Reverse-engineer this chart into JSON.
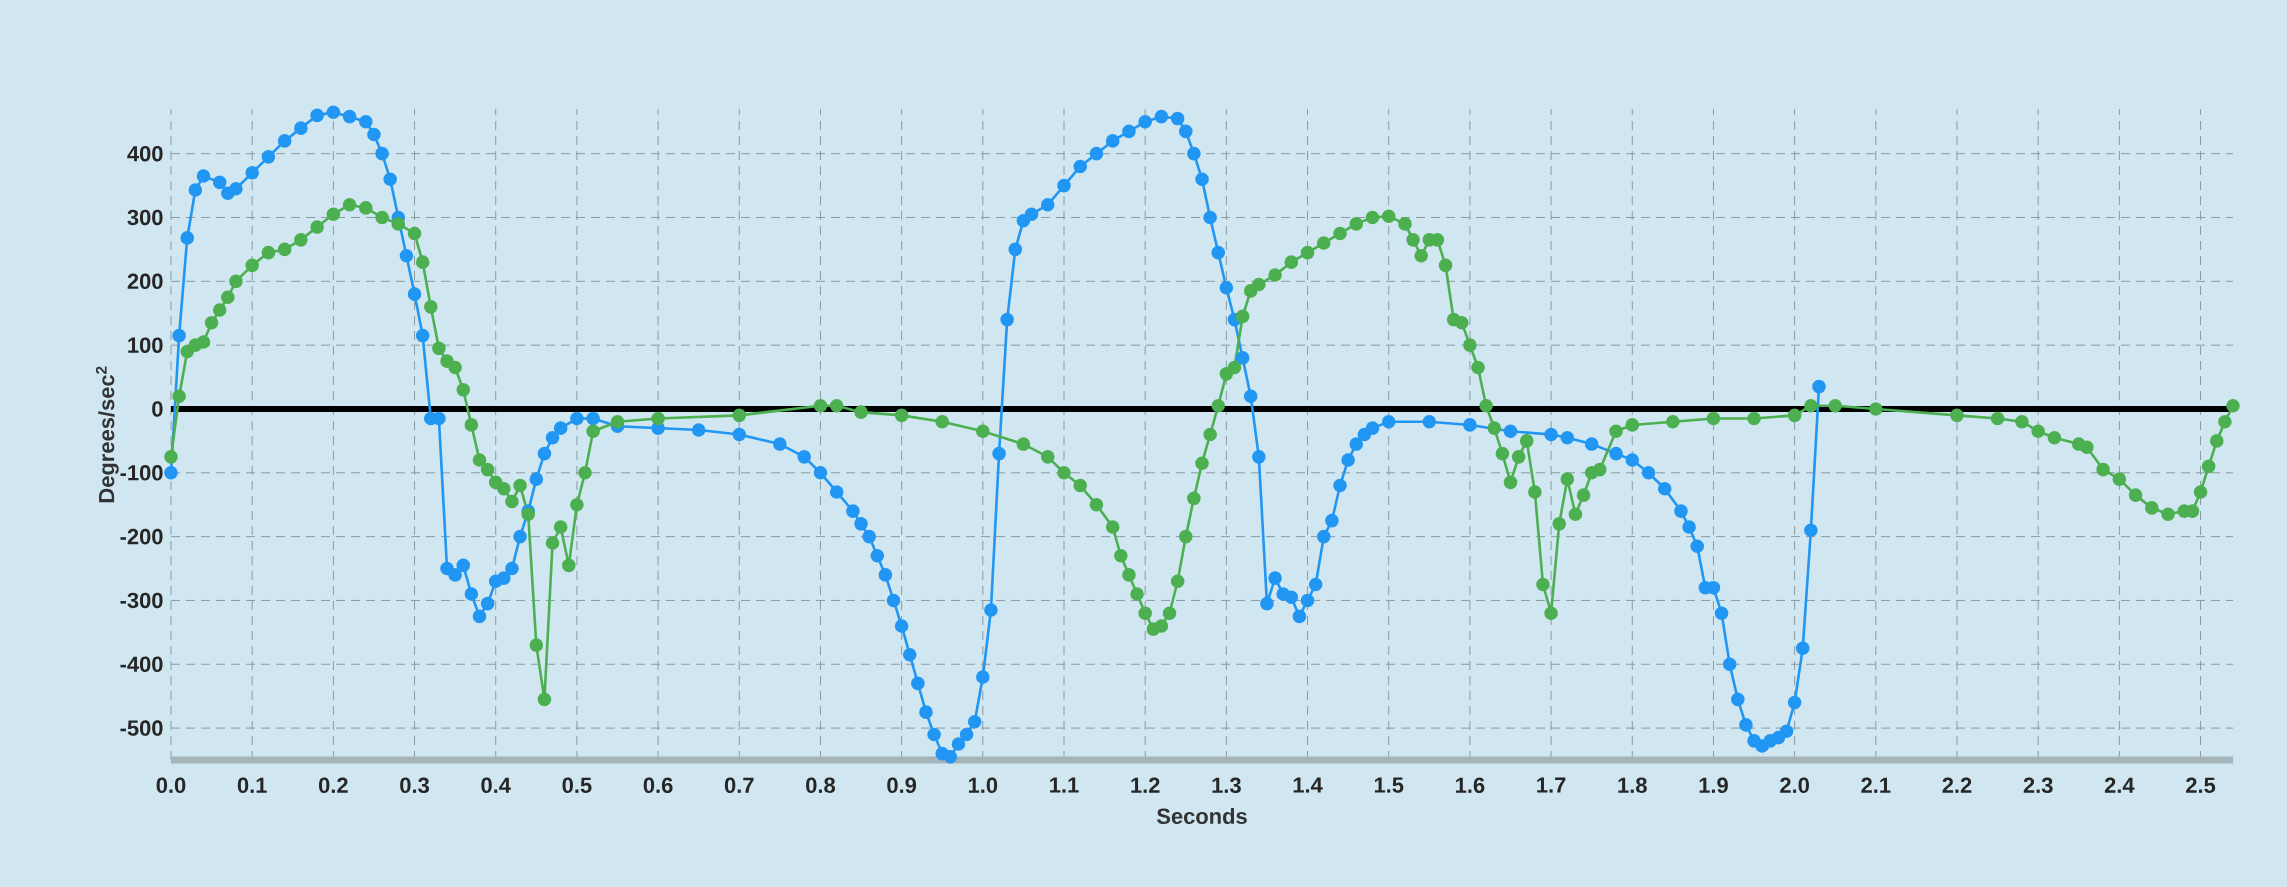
{
  "chart_data": {
    "type": "line",
    "xlabel": "Seconds",
    "ylabel": "Degrees/sec$^{2}$",
    "xlim": [
      0,
      2.54
    ],
    "ylim": [
      -550,
      470
    ],
    "xticks": [
      {
        "value": 0,
        "label": "0.0"
      },
      {
        "value": 0.1,
        "label": "0.1"
      },
      {
        "value": 0.2,
        "label": "0.2"
      },
      {
        "value": 0.3,
        "label": "0.3"
      },
      {
        "value": 0.4,
        "label": "0.4"
      },
      {
        "value": 0.5,
        "label": "0.5"
      },
      {
        "value": 0.6,
        "label": "0.6"
      },
      {
        "value": 0.7,
        "label": "0.7"
      },
      {
        "value": 0.8,
        "label": "0.8"
      },
      {
        "value": 0.9,
        "label": "0.9"
      },
      {
        "value": 1.0,
        "label": "1.0"
      },
      {
        "value": 1.1,
        "label": "1.1"
      },
      {
        "value": 1.2,
        "label": "1.2"
      },
      {
        "value": 1.3,
        "label": "1.3"
      },
      {
        "value": 1.4,
        "label": "1.4"
      },
      {
        "value": 1.5,
        "label": "1.5"
      },
      {
        "value": 1.6,
        "label": "1.6"
      },
      {
        "value": 1.7,
        "label": "1.7"
      },
      {
        "value": 1.8,
        "label": "1.8"
      },
      {
        "value": 1.9,
        "label": "1.9"
      },
      {
        "value": 2.0,
        "label": "2.0"
      },
      {
        "value": 2.1,
        "label": "2.1"
      },
      {
        "value": 2.2,
        "label": "2.2"
      },
      {
        "value": 2.3,
        "label": "2.3"
      },
      {
        "value": 2.4,
        "label": "2.4"
      },
      {
        "value": 2.5,
        "label": "2.5"
      }
    ],
    "yticks": [
      -500,
      -400,
      -300,
      -200,
      -100,
      0,
      100,
      200,
      300,
      400
    ],
    "grid": true,
    "marker": "circle",
    "ref_lines": [
      {
        "axis": "y",
        "value": 0,
        "color": "#000000"
      }
    ],
    "series": [
      {
        "color": "#2196f3",
        "x": [
          0.0,
          0.01,
          0.02,
          0.03,
          0.04,
          0.06,
          0.07,
          0.08,
          0.1,
          0.12,
          0.14,
          0.16,
          0.18,
          0.2,
          0.22,
          0.24,
          0.25,
          0.26,
          0.27,
          0.28,
          0.29,
          0.3,
          0.31,
          0.32,
          0.33,
          0.34,
          0.35,
          0.36,
          0.37,
          0.38,
          0.39,
          0.4,
          0.41,
          0.42,
          0.43,
          0.44,
          0.45,
          0.46,
          0.47,
          0.48,
          0.5,
          0.52,
          0.55,
          0.6,
          0.65,
          0.7,
          0.75,
          0.78,
          0.8,
          0.82,
          0.84,
          0.85,
          0.86,
          0.87,
          0.88,
          0.89,
          0.9,
          0.91,
          0.92,
          0.93,
          0.94,
          0.95,
          0.96,
          0.97,
          0.98,
          0.99,
          1.0,
          1.01,
          1.02,
          1.03,
          1.04,
          1.05,
          1.06,
          1.08,
          1.1,
          1.12,
          1.14,
          1.16,
          1.18,
          1.2,
          1.22,
          1.24,
          1.25,
          1.26,
          1.27,
          1.28,
          1.29,
          1.3,
          1.31,
          1.32,
          1.33,
          1.34,
          1.35,
          1.36,
          1.37,
          1.38,
          1.39,
          1.4,
          1.41,
          1.42,
          1.43,
          1.44,
          1.45,
          1.46,
          1.47,
          1.48,
          1.5,
          1.55,
          1.6,
          1.65,
          1.7,
          1.72,
          1.75,
          1.78,
          1.8,
          1.82,
          1.84,
          1.86,
          1.87,
          1.88,
          1.89,
          1.9,
          1.91,
          1.92,
          1.93,
          1.94,
          1.95,
          1.96,
          1.97,
          1.98,
          1.99,
          2.0,
          2.01,
          2.02,
          2.03
        ],
        "values": [
          -100,
          115,
          268,
          343,
          365,
          355,
          338,
          345,
          370,
          395,
          420,
          440,
          460,
          465,
          458,
          450,
          430,
          400,
          360,
          300,
          240,
          180,
          115,
          -15,
          -15,
          -250,
          -260,
          -245,
          -290,
          -325,
          -305,
          -270,
          -265,
          -250,
          -200,
          -160,
          -110,
          -70,
          -45,
          -30,
          -15,
          -15,
          -27,
          -30,
          -33,
          -40,
          -55,
          -75,
          -100,
          -130,
          -160,
          -180,
          -200,
          -230,
          -260,
          -300,
          -340,
          -385,
          -430,
          -475,
          -510,
          -540,
          -545,
          -525,
          -510,
          -490,
          -420,
          -315,
          -70,
          140,
          250,
          295,
          305,
          320,
          350,
          380,
          400,
          420,
          435,
          450,
          458,
          455,
          435,
          400,
          360,
          300,
          245,
          190,
          140,
          80,
          20,
          -75,
          -305,
          -265,
          -290,
          -295,
          -325,
          -300,
          -275,
          -200,
          -175,
          -120,
          -80,
          -55,
          -40,
          -30,
          -20,
          -20,
          -25,
          -35,
          -40,
          -45,
          -55,
          -70,
          -80,
          -100,
          -125,
          -160,
          -185,
          -215,
          -280,
          -280,
          -320,
          -400,
          -455,
          -495,
          -520,
          -528,
          -520,
          -515,
          -505,
          -460,
          -375,
          -190,
          35
        ]
      },
      {
        "color": "#4caf50",
        "x": [
          0.0,
          0.01,
          0.02,
          0.03,
          0.04,
          0.05,
          0.06,
          0.07,
          0.08,
          0.1,
          0.12,
          0.14,
          0.16,
          0.18,
          0.2,
          0.22,
          0.24,
          0.26,
          0.28,
          0.3,
          0.31,
          0.32,
          0.33,
          0.34,
          0.35,
          0.36,
          0.37,
          0.38,
          0.39,
          0.4,
          0.41,
          0.42,
          0.43,
          0.44,
          0.45,
          0.46,
          0.47,
          0.48,
          0.49,
          0.5,
          0.51,
          0.52,
          0.55,
          0.6,
          0.7,
          0.8,
          0.82,
          0.85,
          0.9,
          0.95,
          1.0,
          1.05,
          1.08,
          1.1,
          1.12,
          1.14,
          1.16,
          1.17,
          1.18,
          1.19,
          1.2,
          1.21,
          1.22,
          1.23,
          1.24,
          1.25,
          1.26,
          1.27,
          1.28,
          1.29,
          1.3,
          1.31,
          1.32,
          1.33,
          1.34,
          1.36,
          1.38,
          1.4,
          1.42,
          1.44,
          1.46,
          1.48,
          1.5,
          1.52,
          1.53,
          1.54,
          1.55,
          1.56,
          1.57,
          1.58,
          1.59,
          1.6,
          1.61,
          1.62,
          1.63,
          1.64,
          1.65,
          1.66,
          1.67,
          1.68,
          1.69,
          1.7,
          1.71,
          1.72,
          1.73,
          1.74,
          1.75,
          1.76,
          1.78,
          1.8,
          1.85,
          1.9,
          1.95,
          2.0,
          2.02,
          2.05,
          2.1,
          2.2,
          2.25,
          2.28,
          2.3,
          2.32,
          2.35,
          2.36,
          2.38,
          2.4,
          2.42,
          2.44,
          2.46,
          2.48,
          2.49,
          2.5,
          2.51,
          2.52,
          2.53,
          2.54
        ],
        "values": [
          -75,
          20,
          90,
          100,
          105,
          135,
          155,
          175,
          200,
          225,
          245,
          250,
          265,
          285,
          305,
          320,
          315,
          300,
          290,
          275,
          230,
          160,
          95,
          75,
          65,
          30,
          -25,
          -80,
          -95,
          -115,
          -125,
          -145,
          -120,
          -165,
          -370,
          -455,
          -210,
          -185,
          -245,
          -150,
          -100,
          -35,
          -20,
          -15,
          -10,
          5,
          5,
          -5,
          -10,
          -20,
          -35,
          -55,
          -75,
          -100,
          -120,
          -150,
          -185,
          -230,
          -260,
          -290,
          -320,
          -345,
          -340,
          -320,
          -270,
          -200,
          -140,
          -85,
          -40,
          5,
          55,
          65,
          145,
          185,
          195,
          210,
          230,
          245,
          260,
          275,
          290,
          300,
          302,
          290,
          265,
          240,
          265,
          265,
          225,
          140,
          135,
          100,
          65,
          5,
          -30,
          -70,
          -115,
          -75,
          -50,
          -130,
          -275,
          -320,
          -180,
          -110,
          -165,
          -135,
          -100,
          -95,
          -35,
          -25,
          -20,
          -15,
          -15,
          -10,
          5,
          5,
          0,
          -10,
          -15,
          -20,
          -35,
          -45,
          -55,
          -60,
          -95,
          -110,
          -135,
          -155,
          -165,
          -160,
          -160,
          -130,
          -90,
          -50,
          -20,
          5
        ]
      }
    ]
  }
}
